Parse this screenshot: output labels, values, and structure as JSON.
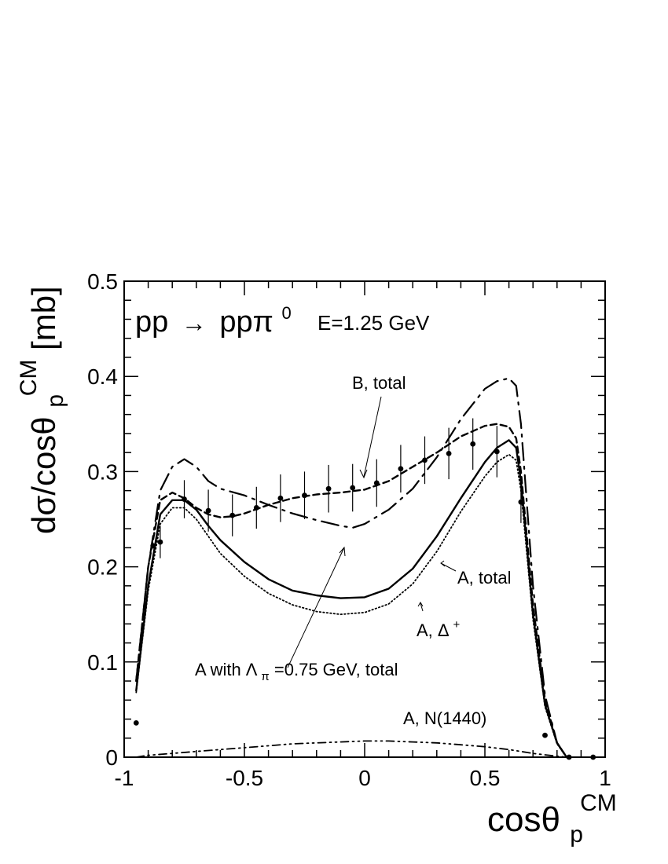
{
  "chart_data": {
    "type": "line",
    "title": "",
    "reaction": {
      "lhs": "pp",
      "arrow": "→",
      "rhs_base": "ppπ",
      "rhs_sup": "0"
    },
    "energy_label": "E=1.25 GeV",
    "ylabel": {
      "base": "dσ/cosθ",
      "sub": "p",
      "sup": "CM",
      "unit": "[mb]"
    },
    "xlabel": {
      "base": "cosθ",
      "sub": "p",
      "sup": "CM"
    },
    "xlim": [
      -1,
      1
    ],
    "ylim": [
      0,
      0.5
    ],
    "xticks": [
      -1,
      -0.5,
      0,
      0.5,
      1
    ],
    "xtick_labels": [
      "-1",
      "-0.5",
      "0",
      "0.5",
      "1"
    ],
    "yticks": [
      0,
      0.1,
      0.2,
      0.3,
      0.4,
      0.5
    ],
    "ytick_labels": [
      "0",
      "0.1",
      "0.2",
      "0.3",
      "0.4",
      "0.5"
    ],
    "grid": false,
    "annotations": {
      "b_total": "B, total",
      "a_total": "A, total",
      "a_delta": {
        "base": "A, Δ",
        "sup": "+"
      },
      "a_lambda": {
        "part1": "A with Λ",
        "sub": "π",
        "part2": "=0.75 GeV, total"
      },
      "a_n1440": "A, N(1440)"
    },
    "data_points": {
      "x": [
        -0.95,
        -0.88,
        -0.85,
        -0.75,
        -0.65,
        -0.55,
        -0.45,
        -0.35,
        -0.25,
        -0.15,
        -0.05,
        0.05,
        0.15,
        0.25,
        0.35,
        0.45,
        0.55,
        0.65,
        0.75,
        0.85,
        0.95
      ],
      "y": [
        0.036,
        0.222,
        0.226,
        0.271,
        0.259,
        0.254,
        0.262,
        0.272,
        0.275,
        0.282,
        0.283,
        0.288,
        0.303,
        0.312,
        0.319,
        0.329,
        0.321,
        0.268,
        0.023,
        0.0,
        0.0
      ],
      "err": [
        0.0,
        0.0,
        0.017,
        0.02,
        0.022,
        0.022,
        0.022,
        0.025,
        0.025,
        0.025,
        0.025,
        0.025,
        0.025,
        0.025,
        0.027,
        0.027,
        0.027,
        0.022,
        0.0,
        0.0,
        0.0
      ]
    },
    "series": [
      {
        "name": "A, total",
        "style": "solid",
        "x": [
          -0.95,
          -0.9,
          -0.85,
          -0.8,
          -0.75,
          -0.7,
          -0.65,
          -0.6,
          -0.5,
          -0.4,
          -0.3,
          -0.2,
          -0.1,
          0.0,
          0.1,
          0.2,
          0.3,
          0.4,
          0.5,
          0.55,
          0.6,
          0.63,
          0.65,
          0.7,
          0.75,
          0.8,
          0.84
        ],
        "y": [
          0.07,
          0.18,
          0.255,
          0.27,
          0.27,
          0.26,
          0.243,
          0.228,
          0.205,
          0.187,
          0.175,
          0.17,
          0.167,
          0.168,
          0.177,
          0.198,
          0.232,
          0.272,
          0.31,
          0.325,
          0.333,
          0.325,
          0.29,
          0.15,
          0.055,
          0.015,
          0.0
        ]
      },
      {
        "name": "A, Δ+",
        "style": "dotted",
        "x": [
          -0.95,
          -0.9,
          -0.85,
          -0.8,
          -0.75,
          -0.7,
          -0.65,
          -0.6,
          -0.5,
          -0.4,
          -0.3,
          -0.2,
          -0.1,
          0.0,
          0.1,
          0.2,
          0.3,
          0.4,
          0.5,
          0.55,
          0.6,
          0.63,
          0.65,
          0.7,
          0.75,
          0.8,
          0.84
        ],
        "y": [
          0.068,
          0.175,
          0.245,
          0.262,
          0.262,
          0.25,
          0.232,
          0.214,
          0.19,
          0.172,
          0.16,
          0.153,
          0.15,
          0.152,
          0.161,
          0.182,
          0.216,
          0.258,
          0.295,
          0.31,
          0.318,
          0.312,
          0.28,
          0.145,
          0.053,
          0.014,
          0.0
        ]
      },
      {
        "name": "B, total",
        "style": "dashed",
        "x": [
          -0.95,
          -0.9,
          -0.85,
          -0.8,
          -0.75,
          -0.7,
          -0.65,
          -0.6,
          -0.55,
          -0.5,
          -0.4,
          -0.3,
          -0.2,
          -0.1,
          0.0,
          0.1,
          0.2,
          0.3,
          0.4,
          0.5,
          0.55,
          0.6,
          0.63,
          0.65,
          0.7,
          0.75,
          0.8,
          0.84
        ],
        "y": [
          0.08,
          0.2,
          0.27,
          0.278,
          0.272,
          0.262,
          0.255,
          0.252,
          0.253,
          0.256,
          0.265,
          0.272,
          0.276,
          0.278,
          0.281,
          0.29,
          0.305,
          0.32,
          0.337,
          0.348,
          0.35,
          0.347,
          0.335,
          0.3,
          0.16,
          0.06,
          0.015,
          0.0
        ]
      },
      {
        "name": "A with Λπ=0.75 GeV, total",
        "style": "dashdot",
        "x": [
          -0.95,
          -0.9,
          -0.85,
          -0.8,
          -0.75,
          -0.7,
          -0.65,
          -0.6,
          -0.5,
          -0.4,
          -0.3,
          -0.2,
          -0.1,
          -0.05,
          0.0,
          0.1,
          0.2,
          0.3,
          0.4,
          0.5,
          0.55,
          0.6,
          0.63,
          0.65,
          0.7,
          0.75,
          0.8,
          0.84
        ],
        "y": [
          0.08,
          0.2,
          0.28,
          0.305,
          0.313,
          0.305,
          0.29,
          0.282,
          0.275,
          0.265,
          0.256,
          0.249,
          0.243,
          0.241,
          0.245,
          0.26,
          0.282,
          0.315,
          0.355,
          0.387,
          0.395,
          0.398,
          0.39,
          0.35,
          0.18,
          0.065,
          0.015,
          0.0
        ]
      },
      {
        "name": "A, N(1440)",
        "style": "dashdotdot",
        "x": [
          -0.95,
          -0.9,
          -0.8,
          -0.7,
          -0.6,
          -0.5,
          -0.4,
          -0.3,
          -0.2,
          -0.1,
          0.0,
          0.1,
          0.2,
          0.3,
          0.4,
          0.5,
          0.6,
          0.7,
          0.8,
          0.84
        ],
        "y": [
          0.0,
          0.002,
          0.004,
          0.006,
          0.008,
          0.01,
          0.012,
          0.014,
          0.015,
          0.016,
          0.017,
          0.017,
          0.016,
          0.015,
          0.013,
          0.011,
          0.008,
          0.004,
          0.001,
          0.0
        ]
      }
    ]
  }
}
